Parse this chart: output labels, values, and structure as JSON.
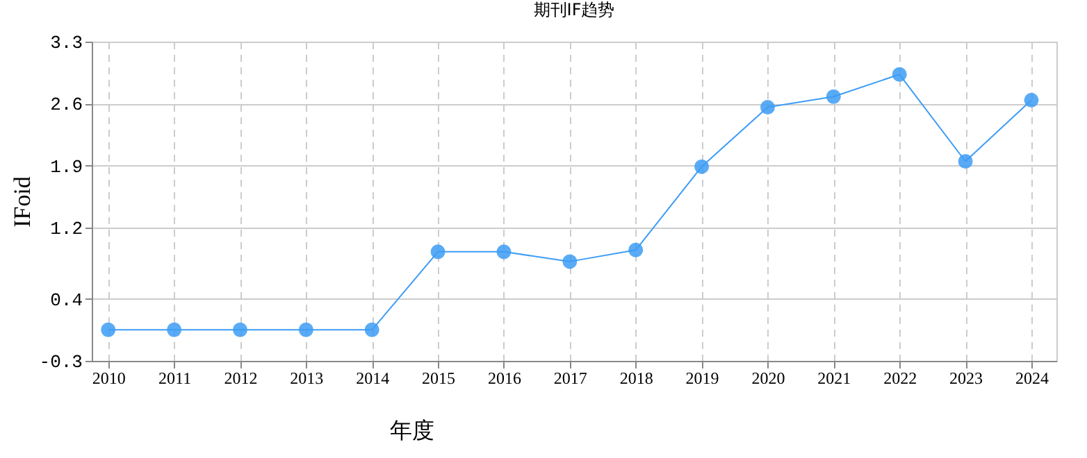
{
  "chart_data": {
    "type": "line",
    "title": "期刊IF趋势",
    "xlabel": "年度",
    "ylabel": "IFoid",
    "categories": [
      "2010",
      "2011",
      "2012",
      "2013",
      "2014",
      "2015",
      "2016",
      "2017",
      "2018",
      "2019",
      "2020",
      "2021",
      "2022",
      "2023",
      "2024"
    ],
    "series": [
      {
        "color": "#3d9cf5",
        "values": [
          0.05,
          0.05,
          0.05,
          0.05,
          0.05,
          0.93,
          0.93,
          0.82,
          0.95,
          1.89,
          2.56,
          2.68,
          2.93,
          1.95,
          2.64
        ]
      }
    ],
    "ylim": [
      -0.3,
      3.3
    ],
    "yticks": [
      -0.3,
      0.4,
      1.2,
      1.9,
      2.6,
      3.3
    ],
    "grid": true,
    "marker": "circle",
    "legend": false
  }
}
